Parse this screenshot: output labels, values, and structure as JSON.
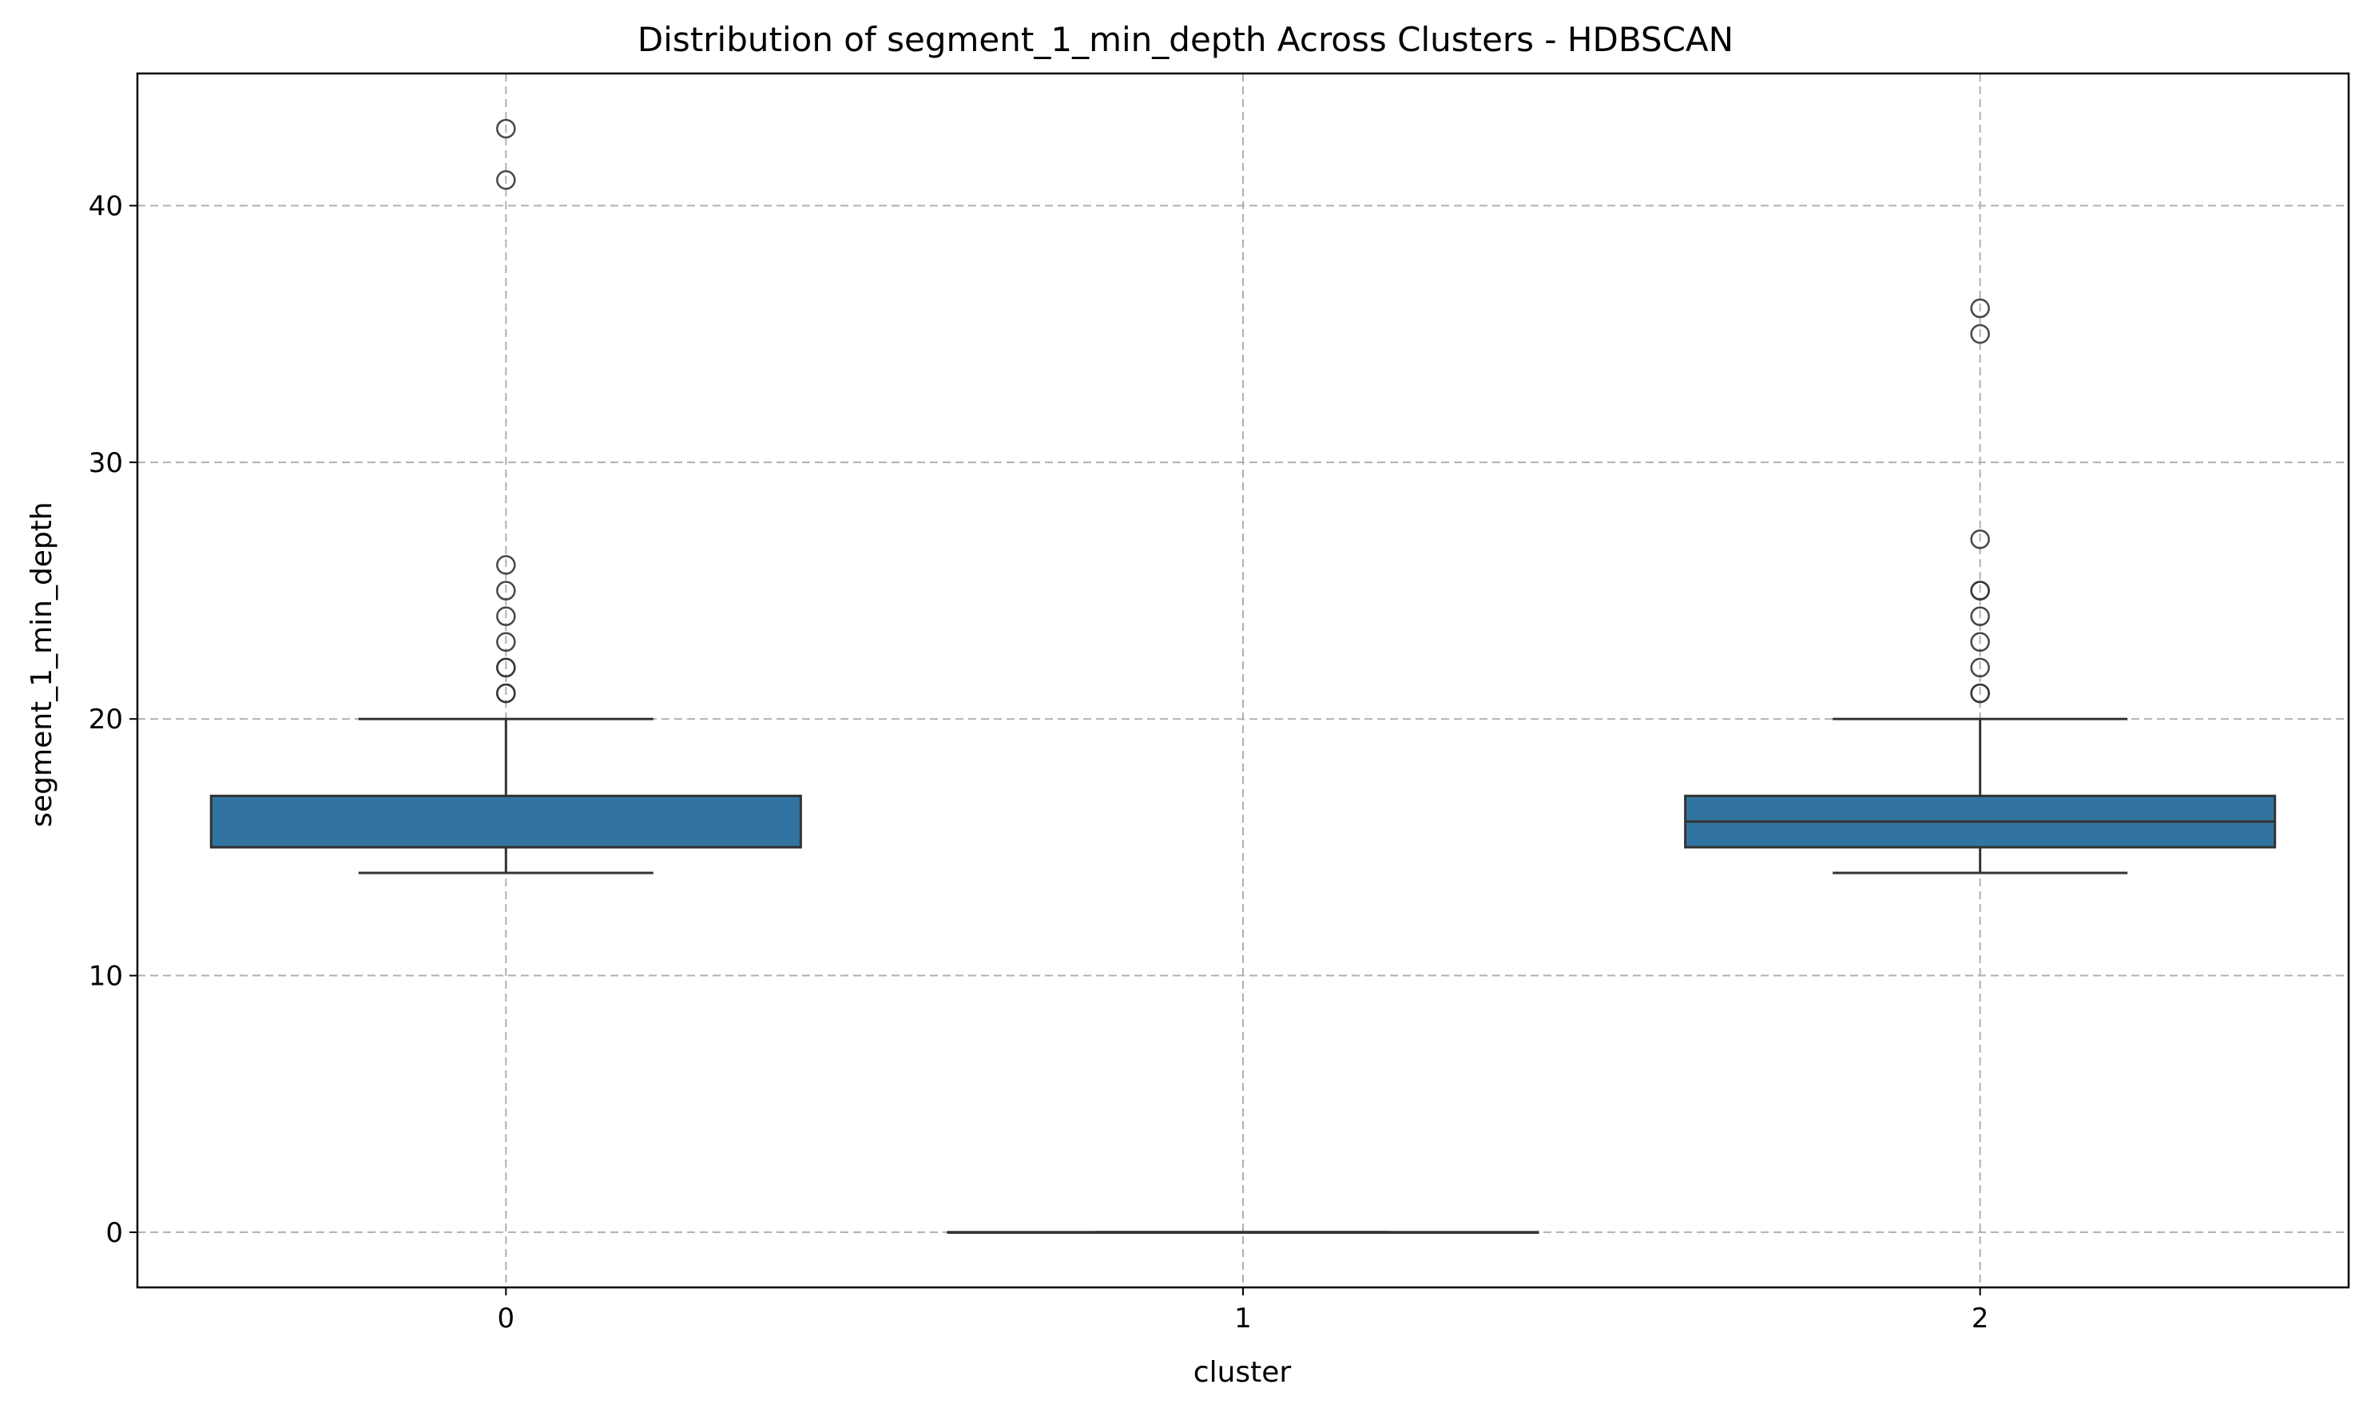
{
  "chart_data": {
    "type": "box",
    "title": "Distribution of segment_1_min_depth Across Clusters - HDBSCAN",
    "xlabel": "cluster",
    "ylabel": "segment_1_min_depth",
    "ylim": [
      -2.15,
      45.15
    ],
    "yticks": [
      0,
      10,
      20,
      30,
      40
    ],
    "grid": true,
    "box_color": "#3274a1",
    "edge_color": "#333333",
    "grid_color": "#b0b0b0",
    "categories": [
      "0",
      "1",
      "2"
    ],
    "boxes": [
      {
        "category": "0",
        "whisker_low": 14,
        "q1": 15,
        "median": 15,
        "q3": 17,
        "whisker_high": 20,
        "outliers": [
          21,
          21,
          22,
          22,
          23,
          24,
          25,
          26,
          41,
          43
        ]
      },
      {
        "category": "1",
        "whisker_low": 0,
        "q1": 0,
        "median": 0,
        "q3": 0,
        "whisker_high": 0,
        "outliers": []
      },
      {
        "category": "2",
        "whisker_low": 14,
        "q1": 15,
        "median": 16,
        "q3": 17,
        "whisker_high": 20,
        "outliers": [
          21,
          21,
          22,
          23,
          24,
          25,
          25,
          27,
          35,
          36
        ]
      }
    ]
  }
}
